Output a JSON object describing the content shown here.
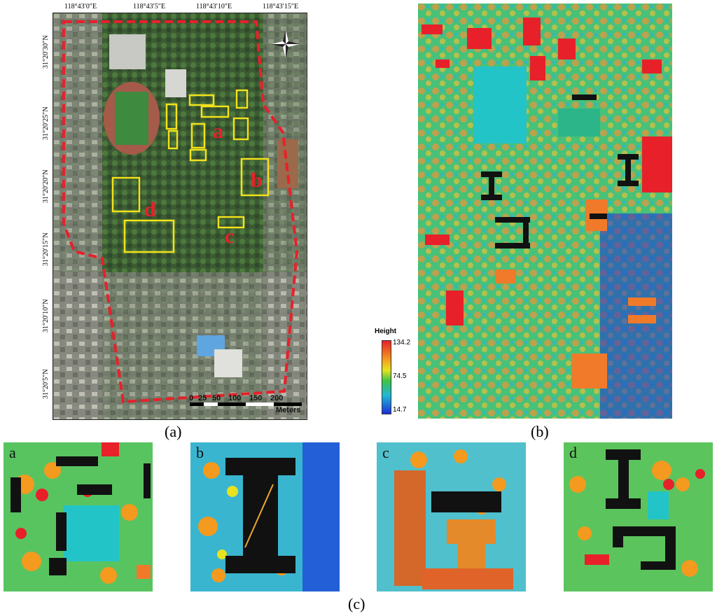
{
  "figure": {
    "caption_a": "(a)",
    "caption_b": "(b)",
    "caption_c": "(c)"
  },
  "panel_a": {
    "top_coords": [
      "118°43′0″E",
      "118°43′5″E",
      "118°43′10″E",
      "118°43′15″E"
    ],
    "left_coords": [
      "31°20′30″N",
      "31°20′25″N",
      "31°20′20″N",
      "31°20′15″N",
      "31°20′10″N",
      "31°20′5″N"
    ],
    "region_labels": [
      "a",
      "b",
      "c",
      "d"
    ],
    "scale_ticks": [
      "0",
      "25",
      "50",
      "100",
      "150",
      "200"
    ],
    "scale_unit": "Meters"
  },
  "panel_b": {
    "legend_title": "Height",
    "legend_max": "134.2",
    "legend_mid": "74.5",
    "legend_min": "14.7",
    "colors": {
      "high": "#e8202a",
      "mid_high": "#f39a1f",
      "mid": "#3dc447",
      "mid_low": "#1fb8d6",
      "low": "#1a2fd8"
    }
  },
  "panel_c": {
    "subpanels": [
      "a",
      "b",
      "c",
      "d"
    ]
  }
}
